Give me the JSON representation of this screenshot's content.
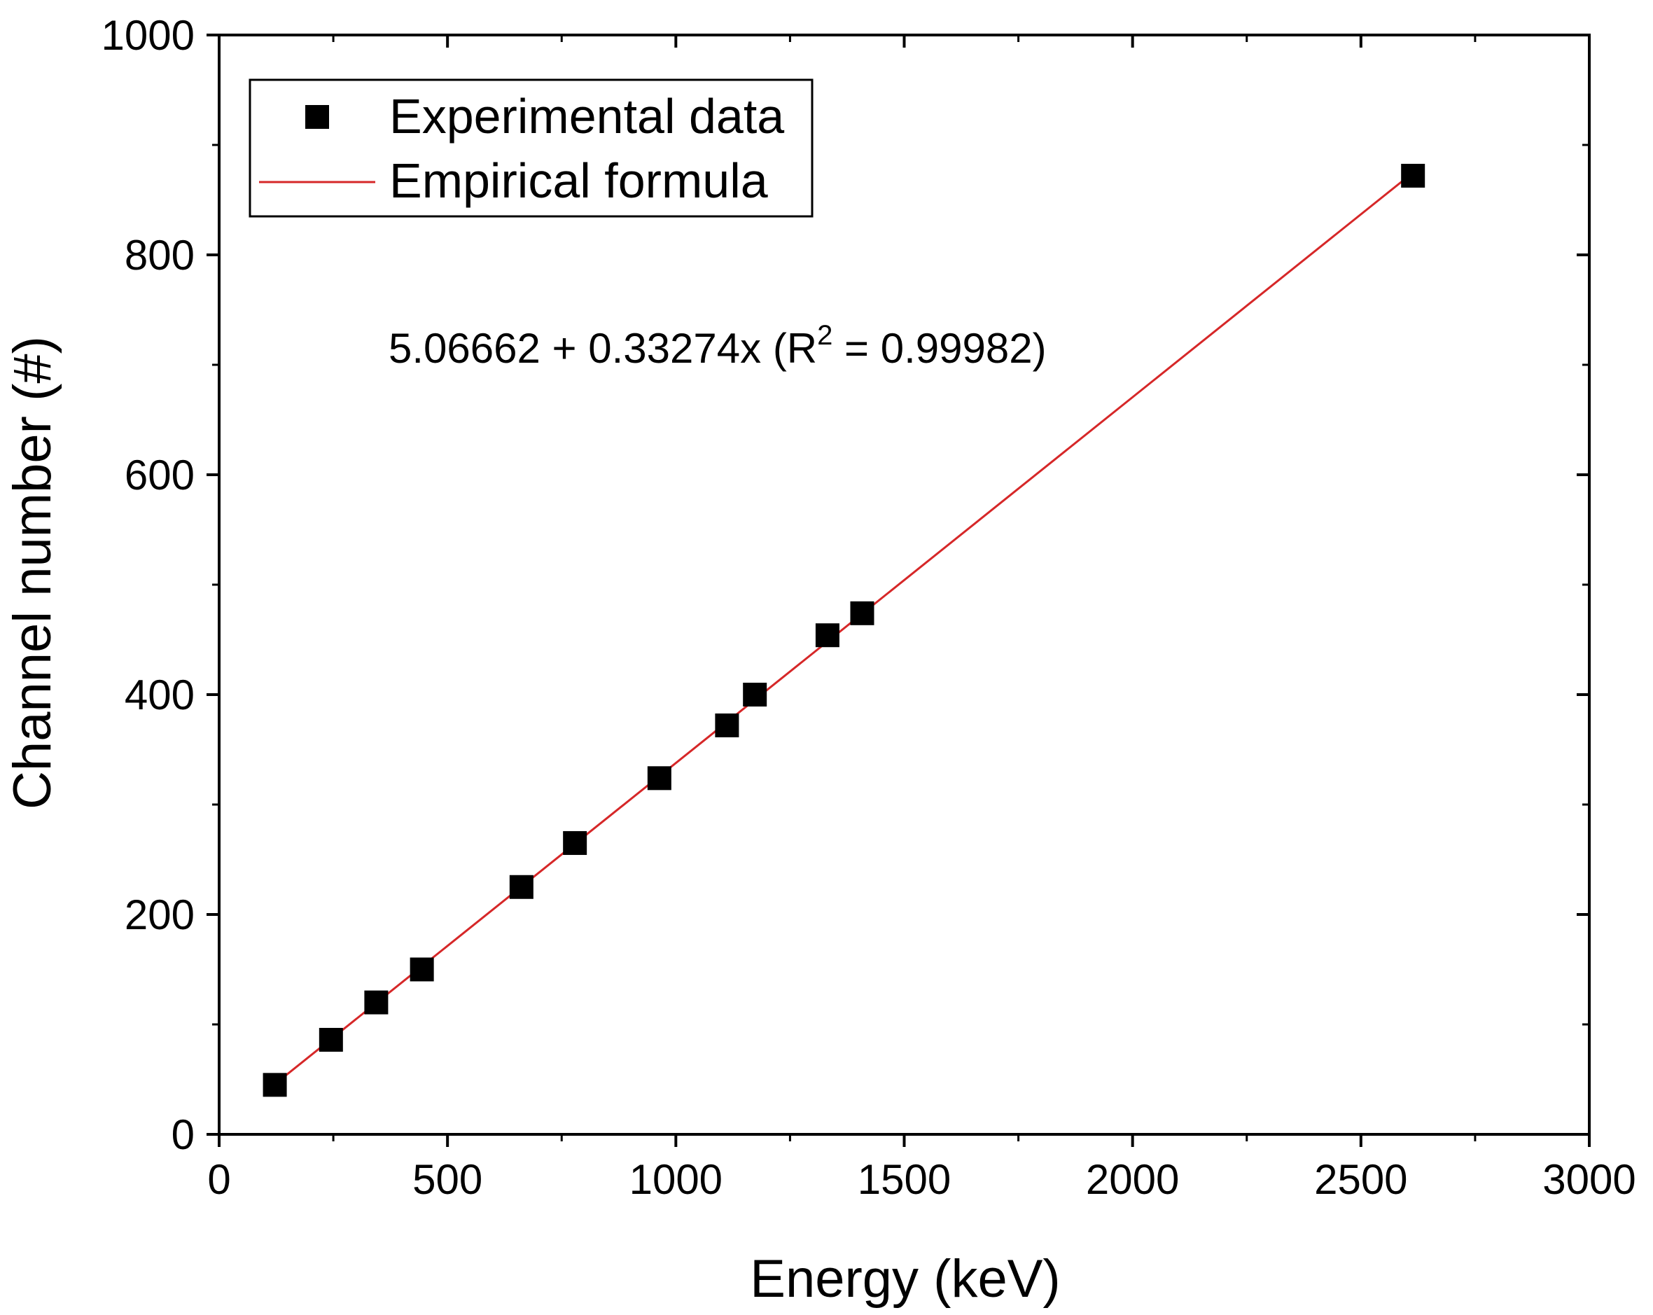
{
  "chart_data": {
    "type": "scatter",
    "xlabel": "Energy (keV)",
    "ylabel": "Channel number (#)",
    "xlim": [
      0,
      3000
    ],
    "ylim": [
      0,
      1000
    ],
    "x_ticks": [
      "0",
      "500",
      "1000",
      "1500",
      "2000",
      "2500",
      "3000"
    ],
    "y_ticks": [
      "0",
      "200",
      "400",
      "600",
      "800",
      "1000"
    ],
    "grid": false,
    "legend_position": "top-left",
    "series": [
      {
        "name": "Experimental data",
        "kind": "scatter",
        "marker": "square",
        "color": "#000000",
        "points": [
          {
            "x": 122,
            "y": 45
          },
          {
            "x": 245,
            "y": 86
          },
          {
            "x": 344,
            "y": 120
          },
          {
            "x": 444,
            "y": 150
          },
          {
            "x": 662,
            "y": 225
          },
          {
            "x": 779,
            "y": 265
          },
          {
            "x": 964,
            "y": 324
          },
          {
            "x": 1112,
            "y": 372
          },
          {
            "x": 1173,
            "y": 400
          },
          {
            "x": 1332,
            "y": 454
          },
          {
            "x": 1408,
            "y": 474
          },
          {
            "x": 2614,
            "y": 872
          }
        ]
      },
      {
        "name": "Empirical formula",
        "kind": "line",
        "color": "#d62728",
        "intercept": 5.06662,
        "slope": 0.33274,
        "x_range": [
          122,
          2614
        ]
      }
    ],
    "annotation": {
      "base": "5.06662 + 0.33274x (R",
      "sup": "2",
      "tail": " = 0.99982)"
    }
  }
}
